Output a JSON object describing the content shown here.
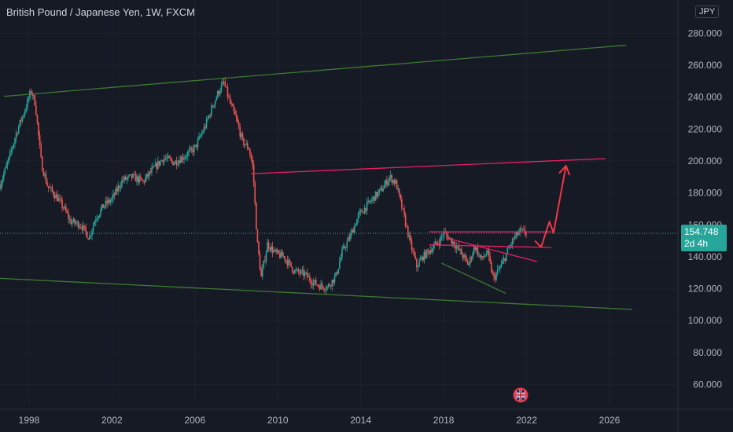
{
  "header": {
    "symbol": "British Pound / Japanese Yen",
    "interval": "1W",
    "exchange": "FXCM",
    "currency": "JPY"
  },
  "price_label": {
    "value": "154.748",
    "countdown": "2d 4h"
  },
  "colors": {
    "background": "#161a25",
    "up": "#26a69a",
    "down": "#ef5350",
    "channel_line": "#3d7a33",
    "resistance_line": "#e91e63",
    "projection_arrow": "#f23645",
    "grid": "#1e222d",
    "axis_text": "#b2b5be"
  },
  "chart_data": {
    "type": "candlestick",
    "ylim": [
      47,
      289
    ],
    "xlim": [
      1996.6,
      2029.3
    ],
    "y_ticks": [
      60,
      80,
      100,
      120,
      140,
      160,
      180,
      200,
      220,
      240,
      260,
      280
    ],
    "y_tick_labels": [
      "60.000",
      "80.000",
      "100.000",
      "120.000",
      "140.000",
      "160.000",
      "180.000",
      "200.000",
      "220.000",
      "240.000",
      "260.000",
      "280.000"
    ],
    "x_ticks": [
      1998,
      2002,
      2006,
      2010,
      2014,
      2018,
      2022,
      2026
    ],
    "x_tick_labels": [
      "1998",
      "2002",
      "2006",
      "2010",
      "2014",
      "2018",
      "2022",
      "2026"
    ],
    "current_price": 154.748,
    "price_path": [
      [
        1996.6,
        185
      ],
      [
        1997.0,
        200
      ],
      [
        1997.4,
        218
      ],
      [
        1997.8,
        232
      ],
      [
        1998.1,
        244
      ],
      [
        1998.3,
        236
      ],
      [
        1998.6,
        198
      ],
      [
        1998.9,
        184
      ],
      [
        1999.3,
        178
      ],
      [
        1999.7,
        170
      ],
      [
        2000.0,
        162
      ],
      [
        2000.5,
        160
      ],
      [
        2000.9,
        152
      ],
      [
        2001.2,
        164
      ],
      [
        2001.6,
        172
      ],
      [
        2002.0,
        176
      ],
      [
        2002.5,
        188
      ],
      [
        2003.0,
        190
      ],
      [
        2003.5,
        187
      ],
      [
        2004.0,
        195
      ],
      [
        2004.5,
        202
      ],
      [
        2005.0,
        199
      ],
      [
        2005.5,
        203
      ],
      [
        2006.0,
        208
      ],
      [
        2006.5,
        222
      ],
      [
        2006.9,
        236
      ],
      [
        2007.2,
        245
      ],
      [
        2007.4,
        249
      ],
      [
        2007.7,
        236
      ],
      [
        2008.0,
        226
      ],
      [
        2008.3,
        212
      ],
      [
        2008.6,
        208
      ],
      [
        2008.8,
        196
      ],
      [
        2009.0,
        150
      ],
      [
        2009.2,
        127
      ],
      [
        2009.5,
        148
      ],
      [
        2009.9,
        142
      ],
      [
        2010.3,
        140
      ],
      [
        2010.8,
        131
      ],
      [
        2011.3,
        129
      ],
      [
        2011.7,
        124
      ],
      [
        2012.0,
        122
      ],
      [
        2012.4,
        121
      ],
      [
        2012.8,
        128
      ],
      [
        2013.1,
        143
      ],
      [
        2013.5,
        153
      ],
      [
        2013.9,
        166
      ],
      [
        2014.3,
        172
      ],
      [
        2014.7,
        178
      ],
      [
        2015.0,
        182
      ],
      [
        2015.4,
        190
      ],
      [
        2015.7,
        186
      ],
      [
        2016.0,
        170
      ],
      [
        2016.4,
        148
      ],
      [
        2016.7,
        134
      ],
      [
        2017.0,
        140
      ],
      [
        2017.4,
        145
      ],
      [
        2017.8,
        150
      ],
      [
        2018.0,
        155
      ],
      [
        2018.4,
        150
      ],
      [
        2018.8,
        143
      ],
      [
        2019.2,
        135
      ],
      [
        2019.5,
        147
      ],
      [
        2019.8,
        138
      ],
      [
        2020.1,
        143
      ],
      [
        2020.4,
        126
      ],
      [
        2020.8,
        135
      ],
      [
        2021.1,
        144
      ],
      [
        2021.4,
        152
      ],
      [
        2021.7,
        156
      ],
      [
        2022.0,
        154.7
      ]
    ]
  },
  "drawings": [
    {
      "kind": "channel_top",
      "color": "#3d7a33",
      "points": [
        [
          1996.8,
          240.5
        ],
        [
          2026.8,
          272.5
        ]
      ]
    },
    {
      "kind": "channel_bottom",
      "color": "#3d7a33",
      "points": [
        [
          1996.6,
          126.5
        ],
        [
          2027.1,
          107
        ]
      ]
    },
    {
      "kind": "resistance",
      "color": "#e91e63",
      "points": [
        [
          2008.7,
          192
        ],
        [
          2025.8,
          201.5
        ]
      ]
    },
    {
      "kind": "range_top",
      "color": "#e91e63",
      "points": [
        [
          2017.3,
          155.6
        ],
        [
          2023.2,
          155.6
        ]
      ]
    },
    {
      "kind": "range_mid",
      "color": "#e91e63",
      "points": [
        [
          2017.3,
          147.5
        ],
        [
          2023.2,
          145.8
        ]
      ]
    },
    {
      "kind": "wedge_top",
      "color": "#e91e63",
      "points": [
        [
          2018.2,
          151.5
        ],
        [
          2022.5,
          137
        ]
      ]
    },
    {
      "kind": "wedge_bottom",
      "color": "#3d7a33",
      "points": [
        [
          2017.9,
          136
        ],
        [
          2021.0,
          117
        ]
      ]
    },
    {
      "kind": "projection",
      "color": "#f23645",
      "points": [
        [
          2022.4,
          150
        ],
        [
          2022.7,
          146
        ],
        [
          2023.1,
          162
        ],
        [
          2023.3,
          155
        ],
        [
          2023.9,
          197
        ]
      ]
    }
  ]
}
